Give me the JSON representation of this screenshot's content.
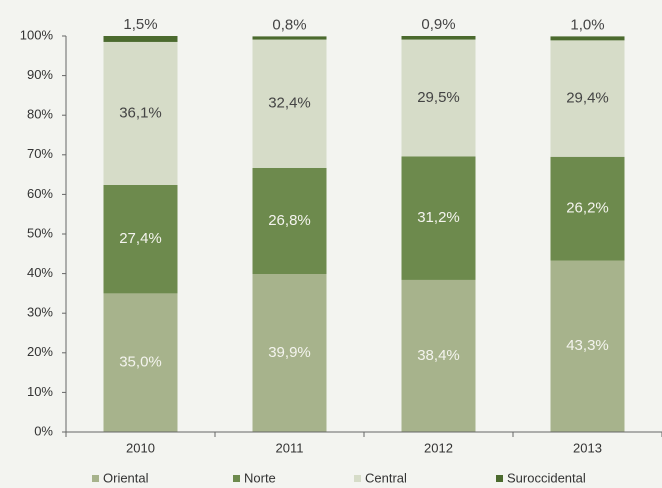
{
  "chart_data": {
    "type": "stacked_bar",
    "categories": [
      "2010",
      "2011",
      "2012",
      "2013"
    ],
    "series": [
      {
        "name": "Oriental",
        "color": "#a7b38c",
        "values": [
          35.0,
          39.9,
          38.4,
          43.3
        ],
        "value_labels": [
          "35,0%",
          "39,9%",
          "38,4%",
          "43,3%"
        ]
      },
      {
        "name": "Norte",
        "color": "#6d8a4d",
        "values": [
          27.4,
          26.8,
          31.2,
          26.2
        ],
        "value_labels": [
          "27,4%",
          "26,8%",
          "31,2%",
          "26,2%"
        ]
      },
      {
        "name": "Central",
        "color": "#d6dcc8",
        "values": [
          36.1,
          32.4,
          29.5,
          29.4
        ],
        "value_labels": [
          "36,1%",
          "32,4%",
          "29,5%",
          "29,4%"
        ]
      },
      {
        "name": "Suroccidental",
        "color": "#4b6a2e",
        "values": [
          1.5,
          0.8,
          0.9,
          1.0
        ],
        "value_labels": [
          "1,5%",
          "0,8%",
          "0,9%",
          "1,0%"
        ]
      }
    ],
    "ylim": [
      0,
      100
    ],
    "yticks": [
      {
        "value": 0,
        "label": "0%"
      },
      {
        "value": 10,
        "label": "10%"
      },
      {
        "value": 20,
        "label": "20%"
      },
      {
        "value": 30,
        "label": "30%"
      },
      {
        "value": 40,
        "label": "40%"
      },
      {
        "value": 50,
        "label": "50%"
      },
      {
        "value": 60,
        "label": "60%"
      },
      {
        "value": 70,
        "label": "70%"
      },
      {
        "value": 80,
        "label": "80%"
      },
      {
        "value": 90,
        "label": "90%"
      },
      {
        "value": 100,
        "label": "100%"
      }
    ],
    "legend": "bottom"
  }
}
